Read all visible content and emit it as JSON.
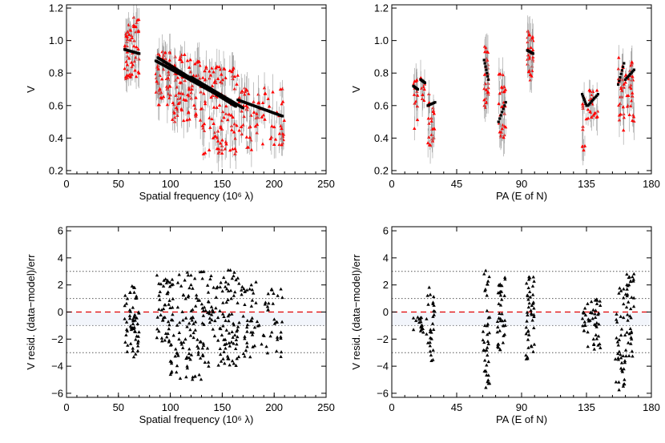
{
  "chart_data": [
    {
      "type": "scatter",
      "panel": "top-left",
      "xlabel": "Spatial frequency (10⁶ λ)",
      "ylabel": "V",
      "xlim": [
        0,
        250
      ],
      "ylim": [
        0.18,
        1.22
      ],
      "xticks": [
        0,
        50,
        100,
        150,
        200,
        250
      ],
      "yticks": [
        0.2,
        0.4,
        0.6,
        0.8,
        1.0,
        1.2
      ],
      "xtick_labels": [
        "0",
        "50",
        "100",
        "150",
        "200",
        "250"
      ],
      "ytick_labels": [
        "0.2",
        "0.4",
        "0.6",
        "0.8",
        "1.0",
        "1.2"
      ],
      "series": [
        {
          "color": "#ff0000",
          "marker": "triangle",
          "errorbars": true,
          "clusters": [
            {
              "x": [
                56,
                70
              ],
              "ymin": 0.75,
              "ymax": 1.15,
              "n": 60
            },
            {
              "x": [
                86,
                100
              ],
              "ymin": 0.6,
              "ymax": 0.95,
              "n": 55
            },
            {
              "x": [
                100,
                130
              ],
              "ymin": 0.5,
              "ymax": 0.92,
              "n": 90
            },
            {
              "x": [
                130,
                165
              ],
              "ymin": 0.3,
              "ymax": 0.85,
              "n": 110
            },
            {
              "x": [
                165,
                210
              ],
              "ymin": 0.32,
              "ymax": 0.72,
              "n": 80
            }
          ]
        },
        {
          "color": "#000000",
          "marker": "square",
          "model": true,
          "segments": [
            {
              "x": [
                56,
                70
              ],
              "y": [
                0.945,
                0.92
              ]
            },
            {
              "x": [
                88,
                163
              ],
              "y": [
                0.895,
                0.595
              ]
            },
            {
              "x": [
                86,
                160
              ],
              "y": [
                0.875,
                0.615
              ]
            },
            {
              "x": [
                120,
                170
              ],
              "y": [
                0.775,
                0.585
              ]
            },
            {
              "x": [
                165,
                208
              ],
              "y": [
                0.635,
                0.535
              ]
            }
          ]
        }
      ]
    },
    {
      "type": "scatter",
      "panel": "top-right",
      "xlabel": "PA (E of N)",
      "ylabel": "V",
      "xlim": [
        0,
        180
      ],
      "ylim": [
        0.18,
        1.22
      ],
      "xticks": [
        0,
        45,
        90,
        135,
        180
      ],
      "yticks": [
        0.2,
        0.4,
        0.6,
        0.8,
        1.0,
        1.2
      ],
      "xtick_labels": [
        "0",
        "45",
        "90",
        "135",
        "180"
      ],
      "ytick_labels": [
        "0.2",
        "0.4",
        "0.6",
        "0.8",
        "1.0",
        "1.2"
      ],
      "series": [
        {
          "color": "#ff0000",
          "marker": "triangle",
          "errorbars": true,
          "clusters": [
            {
              "x": [
                15,
                18
              ],
              "ymin": 0.45,
              "ymax": 0.78,
              "n": 14
            },
            {
              "x": [
                20,
                23
              ],
              "ymin": 0.6,
              "ymax": 0.78,
              "n": 10
            },
            {
              "x": [
                25,
                30
              ],
              "ymin": 0.35,
              "ymax": 0.68,
              "n": 25
            },
            {
              "x": [
                64,
                67
              ],
              "ymin": 0.58,
              "ymax": 0.98,
              "n": 30
            },
            {
              "x": [
                74,
                79
              ],
              "ymin": 0.4,
              "ymax": 0.82,
              "n": 30
            },
            {
              "x": [
                94,
                98
              ],
              "ymin": 0.75,
              "ymax": 1.06,
              "n": 35
            },
            {
              "x": [
                132,
                135
              ],
              "ymin": 0.32,
              "ymax": 0.7,
              "n": 12
            },
            {
              "x": [
                136,
                143
              ],
              "ymin": 0.52,
              "ymax": 0.7,
              "n": 20
            },
            {
              "x": [
                157,
                161
              ],
              "ymin": 0.42,
              "ymax": 0.9,
              "n": 25
            },
            {
              "x": [
                162,
                168
              ],
              "ymin": 0.5,
              "ymax": 0.88,
              "n": 30
            }
          ]
        },
        {
          "color": "#000000",
          "marker": "square",
          "model": true,
          "segments": [
            {
              "x": [
                15,
                18
              ],
              "y": [
                0.72,
                0.7
              ]
            },
            {
              "x": [
                20,
                23
              ],
              "y": [
                0.76,
                0.74
              ]
            },
            {
              "x": [
                25,
                30
              ],
              "y": [
                0.6,
                0.62
              ]
            },
            {
              "x": [
                64,
                67
              ],
              "y": [
                0.88,
                0.76
              ]
            },
            {
              "x": [
                74,
                79
              ],
              "y": [
                0.5,
                0.62
              ]
            },
            {
              "x": [
                94,
                98
              ],
              "y": [
                0.94,
                0.92
              ]
            },
            {
              "x": [
                132,
                135
              ],
              "y": [
                0.67,
                0.6
              ]
            },
            {
              "x": [
                136,
                143
              ],
              "y": [
                0.6,
                0.67
              ]
            },
            {
              "x": [
                157,
                161
              ],
              "y": [
                0.73,
                0.86
              ]
            },
            {
              "x": [
                162,
                168
              ],
              "y": [
                0.76,
                0.82
              ]
            }
          ]
        }
      ]
    },
    {
      "type": "scatter",
      "panel": "bottom-left",
      "xlabel": "Spatial frequency (10⁶ λ)",
      "ylabel": "V resid. (data−model)/err",
      "xlim": [
        0,
        250
      ],
      "ylim": [
        -6.3,
        6.3
      ],
      "xticks": [
        0,
        50,
        100,
        150,
        200,
        250
      ],
      "yticks": [
        -6,
        -4,
        -2,
        0,
        2,
        4,
        6
      ],
      "xtick_labels": [
        "0",
        "50",
        "100",
        "150",
        "200",
        "250"
      ],
      "ytick_labels": [
        "−6",
        "−4",
        "−2",
        "0",
        "2",
        "4",
        "6"
      ],
      "reference_lines": {
        "zero": 0,
        "dotted": [
          -3,
          -1,
          1,
          3
        ]
      },
      "series": [
        {
          "color": "#000000",
          "marker": "triangle",
          "clusters": [
            {
              "x": [
                56,
                70
              ],
              "ymin": -3.5,
              "ymax": 2.2,
              "n": 60
            },
            {
              "x": [
                86,
                100
              ],
              "ymin": -2.4,
              "ymax": 2.8,
              "n": 45
            },
            {
              "x": [
                100,
                130
              ],
              "ymin": -5.0,
              "ymax": 3.0,
              "n": 100
            },
            {
              "x": [
                130,
                165
              ],
              "ymin": -4.0,
              "ymax": 3.1,
              "n": 120
            },
            {
              "x": [
                165,
                210
              ],
              "ymin": -3.4,
              "ymax": 2.3,
              "n": 80
            }
          ]
        }
      ]
    },
    {
      "type": "scatter",
      "panel": "bottom-right",
      "xlabel": "PA (E of N)",
      "ylabel": "V resid. (data−model)/err",
      "xlim": [
        0,
        180
      ],
      "ylim": [
        -6.3,
        6.3
      ],
      "xticks": [
        0,
        45,
        90,
        135,
        180
      ],
      "yticks": [
        -6,
        -4,
        -2,
        0,
        2,
        4,
        6
      ],
      "xtick_labels": [
        "0",
        "45",
        "90",
        "135",
        "180"
      ],
      "ytick_labels": [
        "−6",
        "−4",
        "−2",
        "0",
        "2",
        "4",
        "6"
      ],
      "reference_lines": {
        "zero": 0,
        "dotted": [
          -3,
          -1,
          1,
          3
        ]
      },
      "series": [
        {
          "color": "#000000",
          "marker": "triangle",
          "clusters": [
            {
              "x": [
                15,
                22
              ],
              "ymin": -1.6,
              "ymax": -0.3,
              "n": 18
            },
            {
              "x": [
                24,
                30
              ],
              "ymin": -3.6,
              "ymax": 2.1,
              "n": 30
            },
            {
              "x": [
                63,
                68
              ],
              "ymin": -5.6,
              "ymax": 3.1,
              "n": 40
            },
            {
              "x": [
                73,
                79
              ],
              "ymin": -2.8,
              "ymax": 2.6,
              "n": 40
            },
            {
              "x": [
                93,
                99
              ],
              "ymin": -3.7,
              "ymax": 2.6,
              "n": 45
            },
            {
              "x": [
                132,
                140
              ],
              "ymin": -2.8,
              "ymax": 1.0,
              "n": 25
            },
            {
              "x": [
                140,
                145
              ],
              "ymin": -3.6,
              "ymax": 1.6,
              "n": 25
            },
            {
              "x": [
                155,
                162
              ],
              "ymin": -5.9,
              "ymax": 1.9,
              "n": 40
            },
            {
              "x": [
                162,
                168
              ],
              "ymin": -3.4,
              "ymax": 3.0,
              "n": 40
            }
          ]
        }
      ]
    }
  ]
}
